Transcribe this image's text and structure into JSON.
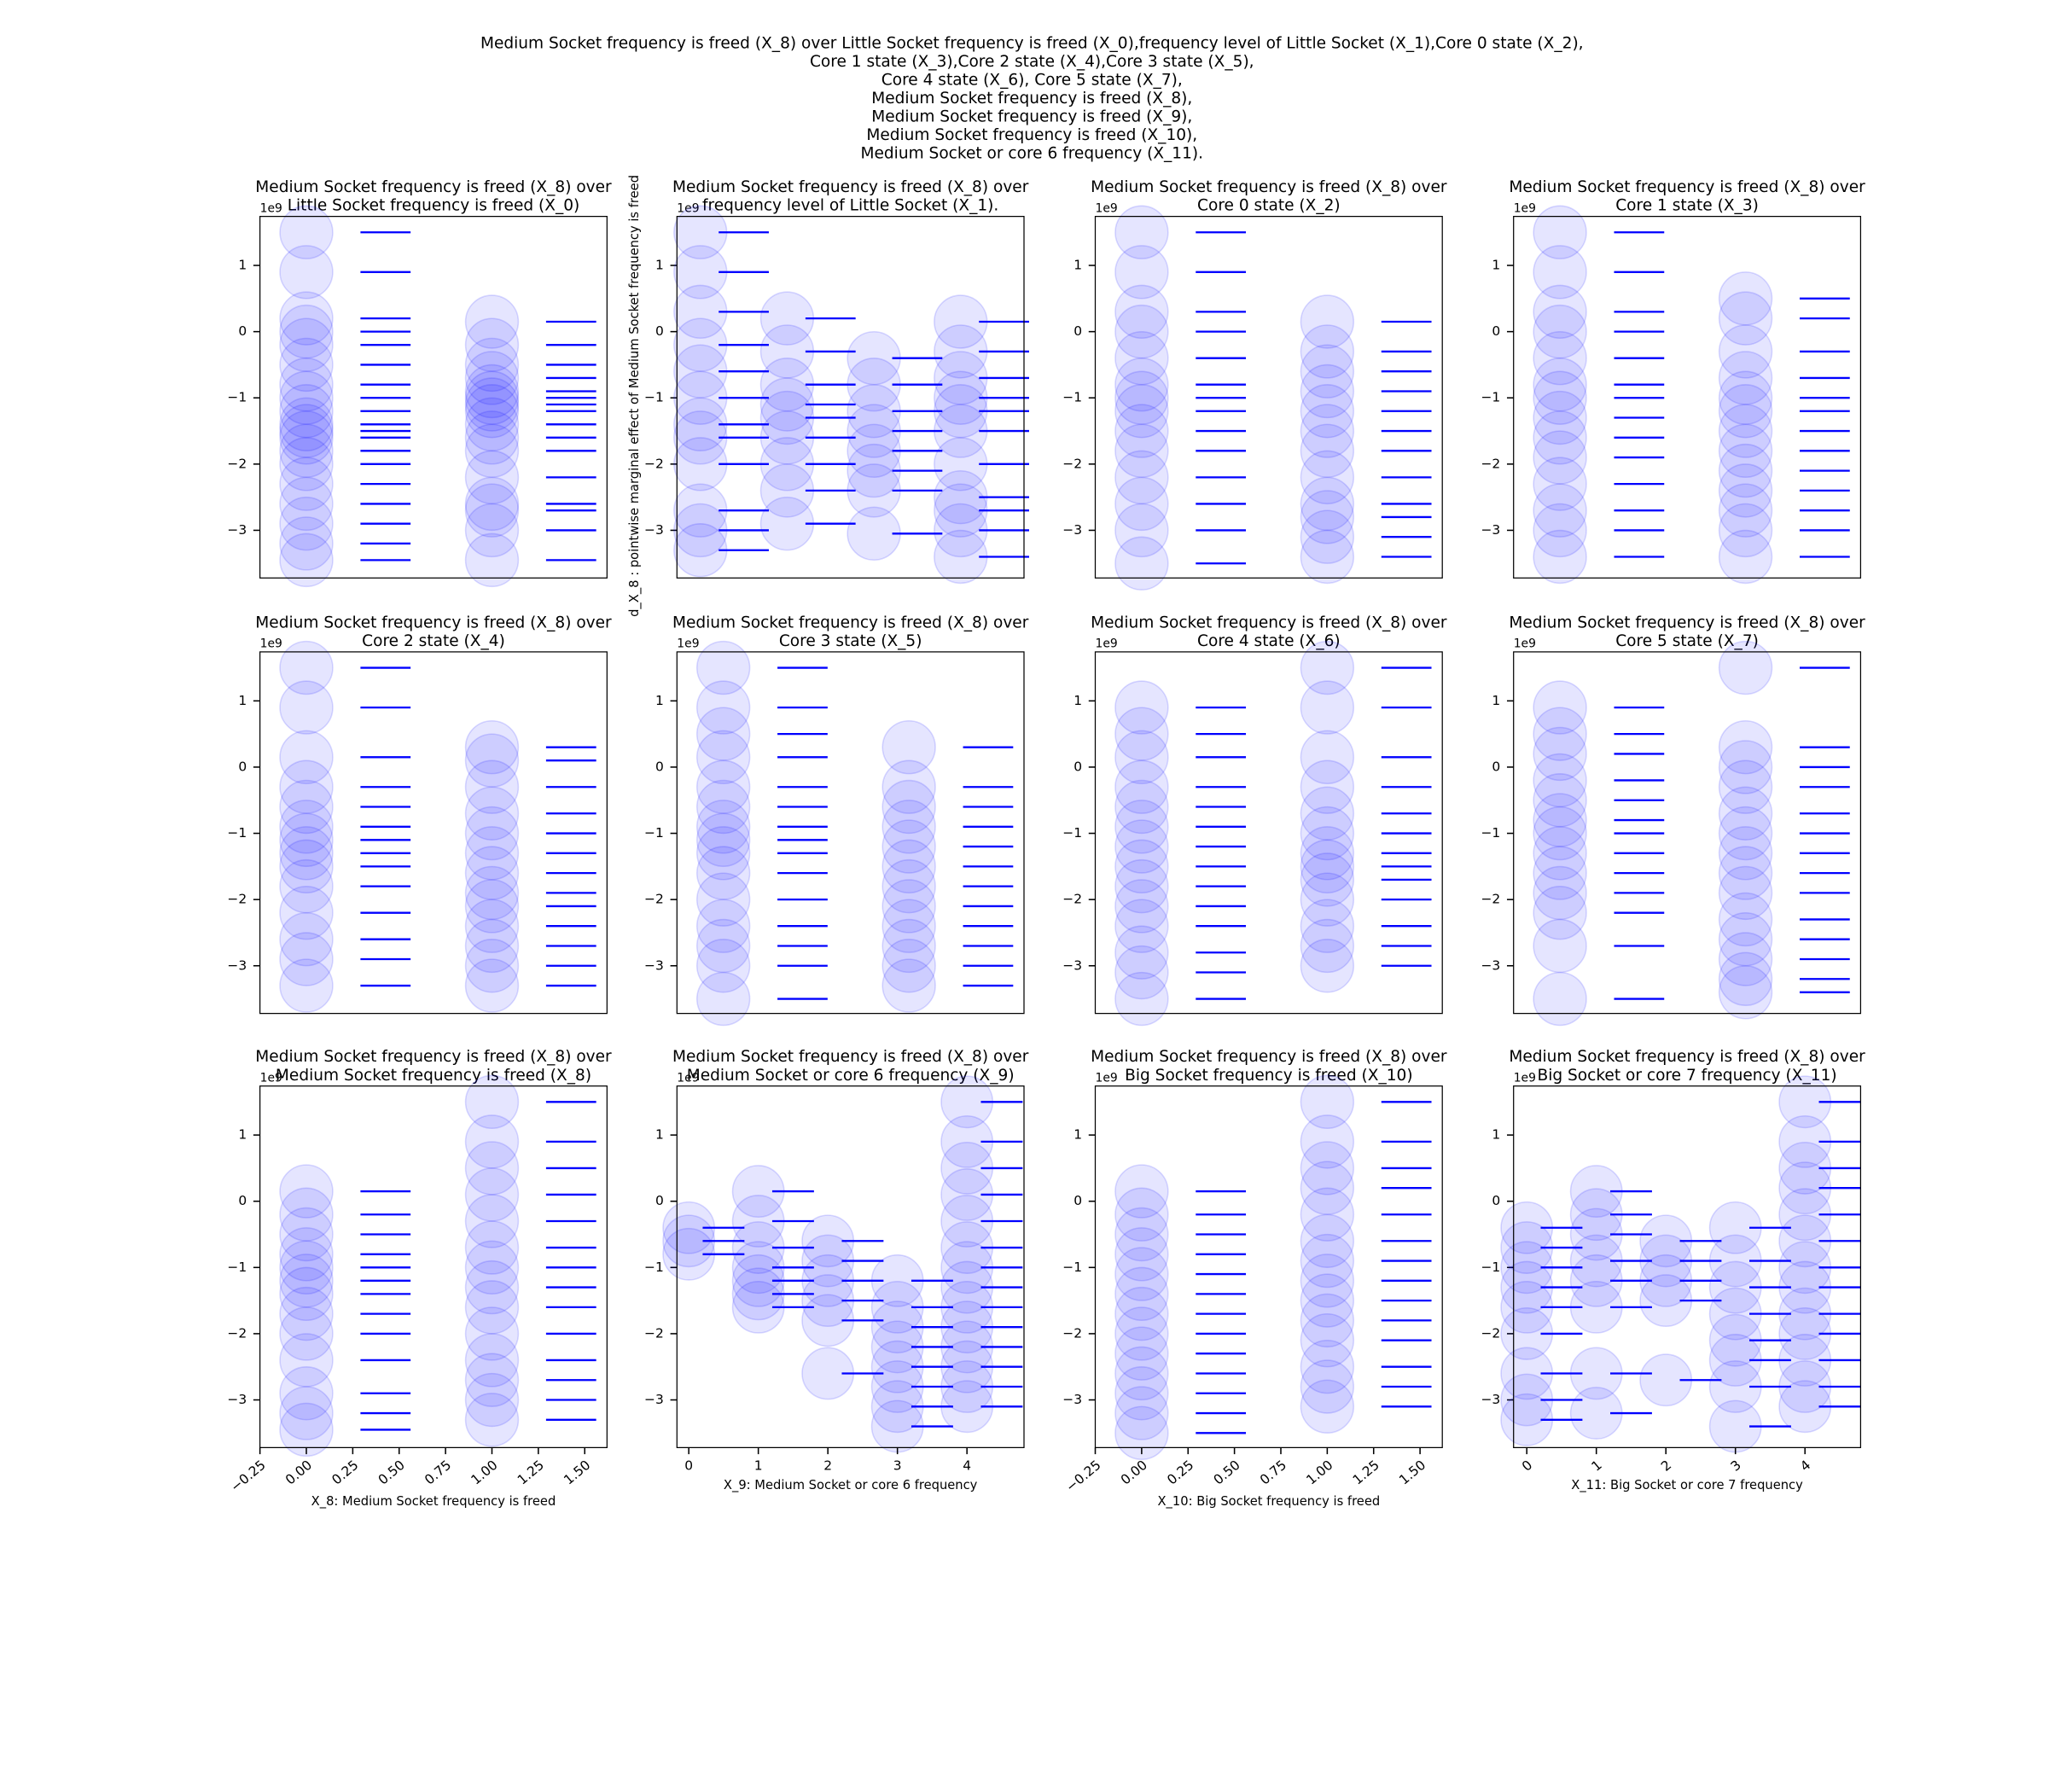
{
  "title": [
    "Medium Socket frequency is freed (X_8) over Little Socket frequency is freed (X_0),frequency level of Little Socket (X_1),Core 0 state (X_2),",
    "Core 1 state (X_3),Core 2 state (X_4),Core 3 state (X_5),",
    "Core 4 state (X_6), Core 5 state (X_7),",
    "Medium Socket frequency is freed (X_8),",
    "Medium Socket frequency is freed (X_9),",
    "Medium Socket frequency is freed (X_10),",
    "Medium Socket or core 6 frequency (X_11)."
  ],
  "ylabel": "d_X_8 : pointwise marginal effect of Medium Socket frequency is freed",
  "chart_data": [
    {
      "type": "scatter",
      "title": [
        "Medium Socket frequency is freed (X_8) over",
        "Little Socket frequency is freed (X_0)"
      ],
      "y_offset_label": "1e9",
      "color": "#0000ff",
      "xlim": [
        -0.25,
        1.62
      ],
      "ylim": [
        -3.72,
        1.74
      ],
      "yticks": [
        {
          "value": -3,
          "label": "−3"
        },
        {
          "value": -2,
          "label": "−2"
        },
        {
          "value": -1,
          "label": "−1"
        },
        0,
        1
      ],
      "groups": [
        {
          "x": 0,
          "values": [
            1.5,
            0.9,
            0.2,
            0.0,
            -0.2,
            -0.5,
            -0.8,
            -1.0,
            -1.2,
            -1.4,
            -1.5,
            -1.6,
            -1.8,
            -2.0,
            -2.3,
            -2.6,
            -2.9,
            -3.2,
            -3.45
          ]
        },
        {
          "x": 1,
          "values": [
            0.15,
            -0.2,
            -0.5,
            -0.7,
            -0.9,
            -1.0,
            -1.1,
            -1.2,
            -1.4,
            -1.6,
            -1.8,
            -2.2,
            -2.6,
            -2.7,
            -3.0,
            -3.45
          ]
        }
      ]
    },
    {
      "type": "scatter",
      "title": [
        "Medium Socket frequency is freed (X_8) over",
        "frequency level of Little Socket (X_1)."
      ],
      "y_offset_label": "1e9",
      "color": "#0000ff",
      "xlim": [
        -0.27,
        3.73
      ],
      "ylim": [
        -3.72,
        1.74
      ],
      "yticks": [
        {
          "value": -3,
          "label": "−3"
        },
        {
          "value": -2,
          "label": "−2"
        },
        {
          "value": -1,
          "label": "−1"
        },
        0,
        1
      ],
      "groups": [
        {
          "x": 0,
          "values": [
            1.5,
            0.9,
            0.3,
            -0.2,
            -0.6,
            -1.0,
            -1.4,
            -1.6,
            -2.0,
            -2.7,
            -3.0,
            -3.3
          ]
        },
        {
          "x": 1,
          "values": [
            0.2,
            -0.3,
            -0.8,
            -1.1,
            -1.3,
            -1.6,
            -2.0,
            -2.4,
            -2.9
          ]
        },
        {
          "x": 2,
          "values": [
            -0.4,
            -0.8,
            -1.2,
            -1.5,
            -1.8,
            -2.1,
            -2.4,
            -3.05
          ]
        },
        {
          "x": 3,
          "values": [
            0.15,
            -0.3,
            -0.7,
            -1.0,
            -1.2,
            -1.5,
            -2.0,
            -2.5,
            -2.7,
            -3.0,
            -3.4
          ]
        }
      ]
    },
    {
      "type": "scatter",
      "title": [
        "Medium Socket frequency is freed (X_8) over",
        "Core 0 state (X_2)"
      ],
      "y_offset_label": "1e9",
      "color": "#0000ff",
      "xlim": [
        -0.25,
        1.62
      ],
      "ylim": [
        -3.72,
        1.74
      ],
      "yticks": [
        {
          "value": -3,
          "label": "−3"
        },
        {
          "value": -2,
          "label": "−2"
        },
        {
          "value": -1,
          "label": "−1"
        },
        0,
        1
      ],
      "groups": [
        {
          "x": 0,
          "values": [
            1.5,
            0.9,
            0.3,
            0.0,
            -0.4,
            -0.8,
            -1.0,
            -1.2,
            -1.5,
            -1.8,
            -2.2,
            -2.6,
            -3.0,
            -3.5
          ]
        },
        {
          "x": 1,
          "values": [
            0.15,
            -0.3,
            -0.6,
            -0.9,
            -1.2,
            -1.5,
            -1.8,
            -2.2,
            -2.6,
            -2.8,
            -3.1,
            -3.4
          ]
        }
      ]
    },
    {
      "type": "scatter",
      "title": [
        "Medium Socket frequency is freed (X_8) over",
        "Core 1 state (X_3)"
      ],
      "y_offset_label": "1e9",
      "color": "#0000ff",
      "xlim": [
        -0.25,
        1.62
      ],
      "ylim": [
        -3.72,
        1.74
      ],
      "yticks": [
        {
          "value": -3,
          "label": "−3"
        },
        {
          "value": -2,
          "label": "−2"
        },
        {
          "value": -1,
          "label": "−1"
        },
        0,
        1
      ],
      "groups": [
        {
          "x": 0,
          "values": [
            1.5,
            0.9,
            0.3,
            0.0,
            -0.4,
            -0.8,
            -1.0,
            -1.3,
            -1.6,
            -1.9,
            -2.3,
            -2.7,
            -3.0,
            -3.4
          ]
        },
        {
          "x": 1,
          "values": [
            0.5,
            0.2,
            -0.3,
            -0.7,
            -1.0,
            -1.2,
            -1.5,
            -1.8,
            -2.1,
            -2.4,
            -2.7,
            -3.0,
            -3.4
          ]
        }
      ]
    },
    {
      "type": "scatter",
      "title": [
        "Medium Socket frequency is freed (X_8) over",
        "Core 2 state (X_4)"
      ],
      "y_offset_label": "1e9",
      "color": "#0000ff",
      "xlim": [
        -0.25,
        1.62
      ],
      "ylim": [
        -3.72,
        1.74
      ],
      "yticks": [
        {
          "value": -3,
          "label": "−3"
        },
        {
          "value": -2,
          "label": "−2"
        },
        {
          "value": -1,
          "label": "−1"
        },
        0,
        1
      ],
      "groups": [
        {
          "x": 0,
          "values": [
            1.5,
            0.9,
            0.15,
            -0.3,
            -0.6,
            -0.9,
            -1.1,
            -1.3,
            -1.5,
            -1.8,
            -2.2,
            -2.6,
            -2.9,
            -3.3
          ]
        },
        {
          "x": 1,
          "values": [
            0.3,
            0.1,
            -0.3,
            -0.7,
            -1.0,
            -1.3,
            -1.6,
            -1.9,
            -2.1,
            -2.4,
            -2.7,
            -3.0,
            -3.3
          ]
        }
      ]
    },
    {
      "type": "scatter",
      "title": [
        "Medium Socket frequency is freed (X_8) over",
        "Core 3 state (X_5)"
      ],
      "y_offset_label": "1e9",
      "color": "#0000ff",
      "xlim": [
        -0.25,
        1.62
      ],
      "ylim": [
        -3.72,
        1.74
      ],
      "yticks": [
        {
          "value": -3,
          "label": "−3"
        },
        {
          "value": -2,
          "label": "−2"
        },
        {
          "value": -1,
          "label": "−1"
        },
        0,
        1
      ],
      "groups": [
        {
          "x": 0,
          "values": [
            1.5,
            0.9,
            0.5,
            0.15,
            -0.3,
            -0.6,
            -0.9,
            -1.1,
            -1.3,
            -1.6,
            -2.0,
            -2.4,
            -2.7,
            -3.0,
            -3.5
          ]
        },
        {
          "x": 1,
          "values": [
            0.3,
            -0.3,
            -0.6,
            -0.9,
            -1.2,
            -1.5,
            -1.8,
            -2.1,
            -2.4,
            -2.7,
            -3.0,
            -3.3
          ]
        }
      ]
    },
    {
      "type": "scatter",
      "title": [
        "Medium Socket frequency is freed (X_8) over",
        "Core 4 state (X_6)"
      ],
      "y_offset_label": "1e9",
      "color": "#0000ff",
      "xlim": [
        -0.25,
        1.62
      ],
      "ylim": [
        -3.72,
        1.74
      ],
      "yticks": [
        {
          "value": -3,
          "label": "−3"
        },
        {
          "value": -2,
          "label": "−2"
        },
        {
          "value": -1,
          "label": "−1"
        },
        0,
        1
      ],
      "groups": [
        {
          "x": 0,
          "values": [
            0.9,
            0.5,
            0.15,
            -0.3,
            -0.6,
            -0.9,
            -1.2,
            -1.5,
            -1.8,
            -2.1,
            -2.4,
            -2.8,
            -3.1,
            -3.5
          ]
        },
        {
          "x": 1,
          "values": [
            1.5,
            0.9,
            0.15,
            -0.3,
            -0.7,
            -1.0,
            -1.3,
            -1.5,
            -1.7,
            -2.0,
            -2.4,
            -2.7,
            -3.0
          ]
        }
      ]
    },
    {
      "type": "scatter",
      "title": [
        "Medium Socket frequency is freed (X_8) over",
        "Core 5 state (X_7)"
      ],
      "y_offset_label": "1e9",
      "color": "#0000ff",
      "xlim": [
        -0.25,
        1.62
      ],
      "ylim": [
        -3.72,
        1.74
      ],
      "yticks": [
        {
          "value": -3,
          "label": "−3"
        },
        {
          "value": -2,
          "label": "−2"
        },
        {
          "value": -1,
          "label": "−1"
        },
        0,
        1
      ],
      "groups": [
        {
          "x": 0,
          "values": [
            0.9,
            0.5,
            0.2,
            -0.2,
            -0.5,
            -0.8,
            -1.0,
            -1.3,
            -1.6,
            -1.9,
            -2.2,
            -2.7,
            -3.5
          ]
        },
        {
          "x": 1,
          "values": [
            1.5,
            0.3,
            0.0,
            -0.3,
            -0.7,
            -1.0,
            -1.3,
            -1.6,
            -1.9,
            -2.3,
            -2.6,
            -2.9,
            -3.2,
            -3.4
          ]
        }
      ]
    },
    {
      "type": "scatter",
      "title": [
        "Medium Socket frequency is freed (X_8) over",
        "Medium Socket frequency is freed (X_8)"
      ],
      "y_offset_label": "1e9",
      "xlabel": "X_8: Medium Socket frequency is freed",
      "color": "#0000ff",
      "xlim": [
        -0.25,
        1.62
      ],
      "ylim": [
        -3.72,
        1.74
      ],
      "yticks": [
        {
          "value": -3,
          "label": "−3"
        },
        {
          "value": -2,
          "label": "−2"
        },
        {
          "value": -1,
          "label": "−1"
        },
        0,
        1
      ],
      "xticks": [
        {
          "value": -0.25,
          "label": "−0.25"
        },
        {
          "value": 0,
          "label": "0.00"
        },
        0.25,
        {
          "value": 0.5,
          "label": "0.50"
        },
        0.75,
        {
          "value": 1,
          "label": "1.00"
        },
        1.25,
        {
          "value": 1.5,
          "label": "1.50"
        }
      ],
      "groups": [
        {
          "x": 0,
          "values": [
            0.15,
            -0.2,
            -0.5,
            -0.8,
            -1.0,
            -1.2,
            -1.4,
            -1.7,
            -2.0,
            -2.4,
            -2.9,
            -3.2,
            -3.45
          ]
        },
        {
          "x": 1,
          "values": [
            1.5,
            0.9,
            0.5,
            0.1,
            -0.3,
            -0.7,
            -1.0,
            -1.3,
            -1.6,
            -2.0,
            -2.4,
            -2.7,
            -3.0,
            -3.3
          ]
        }
      ]
    },
    {
      "type": "scatter",
      "title": [
        "Medium Socket frequency is freed (X_8) over",
        "Medium Socket or core 6 frequency (X_9)"
      ],
      "y_offset_label": "1e9",
      "xlabel": "X_9: Medium Socket or core 6 frequency",
      "color": "#0000ff",
      "xlim": [
        -0.17,
        4.82
      ],
      "ylim": [
        -3.72,
        1.74
      ],
      "yticks": [
        {
          "value": -3,
          "label": "−3"
        },
        {
          "value": -2,
          "label": "−2"
        },
        {
          "value": -1,
          "label": "−1"
        },
        0,
        1
      ],
      "xticks": [
        0,
        1,
        2,
        3,
        4
      ],
      "groups": [
        {
          "x": 0,
          "values": [
            -0.4,
            -0.6,
            -0.8
          ]
        },
        {
          "x": 1,
          "values": [
            0.15,
            -0.3,
            -0.7,
            -1.0,
            -1.2,
            -1.4,
            -1.6
          ]
        },
        {
          "x": 2,
          "values": [
            -0.6,
            -0.9,
            -1.2,
            -1.5,
            -1.8,
            -2.6
          ]
        },
        {
          "x": 3,
          "values": [
            -1.2,
            -1.6,
            -1.9,
            -2.2,
            -2.5,
            -2.8,
            -3.1,
            -3.4
          ]
        },
        {
          "x": 4,
          "values": [
            1.5,
            0.9,
            0.5,
            0.1,
            -0.3,
            -0.7,
            -1.0,
            -1.3,
            -1.6,
            -1.9,
            -2.2,
            -2.5,
            -2.8,
            -3.1
          ]
        }
      ]
    },
    {
      "type": "scatter",
      "title": [
        "Medium Socket frequency is freed (X_8) over",
        "Big Socket frequency is freed (X_10)"
      ],
      "y_offset_label": "1e9",
      "xlabel": "X_10: Big Socket frequency is freed",
      "color": "#0000ff",
      "xlim": [
        -0.25,
        1.62
      ],
      "ylim": [
        -3.72,
        1.74
      ],
      "yticks": [
        {
          "value": -3,
          "label": "−3"
        },
        {
          "value": -2,
          "label": "−2"
        },
        {
          "value": -1,
          "label": "−1"
        },
        0,
        1
      ],
      "xticks": [
        {
          "value": -0.25,
          "label": "−0.25"
        },
        {
          "value": 0,
          "label": "0.00"
        },
        0.25,
        {
          "value": 0.5,
          "label": "0.50"
        },
        0.75,
        {
          "value": 1,
          "label": "1.00"
        },
        1.25,
        {
          "value": 1.5,
          "label": "1.50"
        }
      ],
      "groups": [
        {
          "x": 0,
          "values": [
            0.15,
            -0.2,
            -0.5,
            -0.8,
            -1.1,
            -1.4,
            -1.7,
            -2.0,
            -2.3,
            -2.6,
            -2.9,
            -3.2,
            -3.5
          ]
        },
        {
          "x": 1,
          "values": [
            1.5,
            0.9,
            0.5,
            0.2,
            -0.2,
            -0.6,
            -0.9,
            -1.2,
            -1.5,
            -1.8,
            -2.1,
            -2.5,
            -2.8,
            -3.1
          ]
        }
      ]
    },
    {
      "type": "scatter",
      "title": [
        "Medium Socket frequency is freed (X_8) over",
        "Big Socket or core 7 frequency (X_11)"
      ],
      "y_offset_label": "1e9",
      "xlabel": "X_11: Big Socket or core 7 frequency",
      "color": "#0000ff",
      "xlim": [
        -0.19,
        4.8
      ],
      "ylim": [
        -3.72,
        1.74
      ],
      "yticks": [
        {
          "value": -3,
          "label": "−3"
        },
        {
          "value": -2,
          "label": "−2"
        },
        {
          "value": -1,
          "label": "−1"
        },
        0,
        1
      ],
      "xticks": [
        0,
        1,
        2,
        3,
        4
      ],
      "groups": [
        {
          "x": 0,
          "values": [
            -0.4,
            -0.7,
            -1.0,
            -1.3,
            -1.6,
            -2.0,
            -2.6,
            -3.0,
            -3.3
          ]
        },
        {
          "x": 1,
          "values": [
            0.15,
            -0.2,
            -0.5,
            -0.9,
            -1.2,
            -1.6,
            -2.6,
            -3.2
          ]
        },
        {
          "x": 2,
          "values": [
            -0.6,
            -0.9,
            -1.2,
            -1.5,
            -2.7
          ]
        },
        {
          "x": 3,
          "values": [
            -0.4,
            -0.9,
            -1.3,
            -1.7,
            -2.1,
            -2.4,
            -2.8,
            -3.4
          ]
        },
        {
          "x": 4,
          "values": [
            1.5,
            0.9,
            0.5,
            0.2,
            -0.2,
            -0.6,
            -1.0,
            -1.3,
            -1.7,
            -2.0,
            -2.4,
            -2.8,
            -3.1
          ]
        }
      ]
    }
  ]
}
